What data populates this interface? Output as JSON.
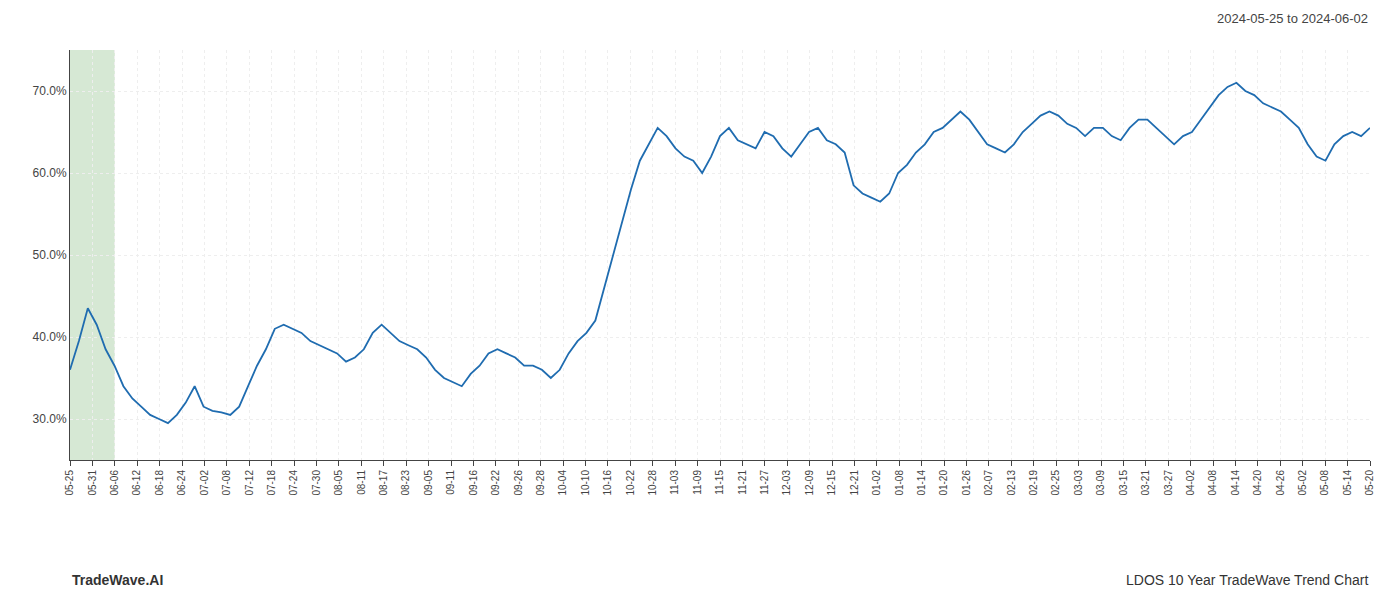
{
  "chart_data": {
    "type": "line",
    "annotations": [
      "2024-05-25 to 2024-06-02",
      "TradeWave.AI",
      "LDOS 10 Year TradeWave Trend Chart"
    ],
    "color": "#1f6cb0",
    "grid": true,
    "bands": [
      {
        "x0": 0,
        "x1": 2,
        "color": "#d6e8d4"
      }
    ],
    "xlim": [
      0,
      58
    ],
    "xticks": [
      {
        "value": 0,
        "label": "05-25"
      },
      {
        "value": 1,
        "label": "05-31"
      },
      {
        "value": 2,
        "label": "06-06"
      },
      {
        "value": 3,
        "label": "06-12"
      },
      {
        "value": 4,
        "label": "06-18"
      },
      {
        "value": 5,
        "label": "06-24"
      },
      {
        "value": 6,
        "label": "07-02"
      },
      {
        "value": 7,
        "label": "07-08"
      },
      {
        "value": 8,
        "label": "07-12"
      },
      {
        "value": 9,
        "label": "07-18"
      },
      {
        "value": 10,
        "label": "07-24"
      },
      {
        "value": 11,
        "label": "07-30"
      },
      {
        "value": 12,
        "label": "08-05"
      },
      {
        "value": 13,
        "label": "08-11"
      },
      {
        "value": 14,
        "label": "08-17"
      },
      {
        "value": 15,
        "label": "08-23"
      },
      {
        "value": 16,
        "label": "09-05"
      },
      {
        "value": 17,
        "label": "09-11"
      },
      {
        "value": 18,
        "label": "09-16"
      },
      {
        "value": 19,
        "label": "09-22"
      },
      {
        "value": 20,
        "label": "09-26"
      },
      {
        "value": 21,
        "label": "09-28"
      },
      {
        "value": 22,
        "label": "10-04"
      },
      {
        "value": 23,
        "label": "10-10"
      },
      {
        "value": 24,
        "label": "10-16"
      },
      {
        "value": 25,
        "label": "10-22"
      },
      {
        "value": 26,
        "label": "10-28"
      },
      {
        "value": 27,
        "label": "11-03"
      },
      {
        "value": 28,
        "label": "11-09"
      },
      {
        "value": 29,
        "label": "11-15"
      },
      {
        "value": 30,
        "label": "11-21"
      },
      {
        "value": 31,
        "label": "11-27"
      },
      {
        "value": 32,
        "label": "12-03"
      },
      {
        "value": 33,
        "label": "12-09"
      },
      {
        "value": 34,
        "label": "12-15"
      },
      {
        "value": 35,
        "label": "12-21"
      },
      {
        "value": 36,
        "label": "01-02"
      },
      {
        "value": 37,
        "label": "01-08"
      },
      {
        "value": 38,
        "label": "01-14"
      },
      {
        "value": 39,
        "label": "01-20"
      },
      {
        "value": 40,
        "label": "01-26"
      },
      {
        "value": 41,
        "label": "02-07"
      },
      {
        "value": 42,
        "label": "02-13"
      },
      {
        "value": 43,
        "label": "02-19"
      },
      {
        "value": 44,
        "label": "02-25"
      },
      {
        "value": 45,
        "label": "03-03"
      },
      {
        "value": 46,
        "label": "03-09"
      },
      {
        "value": 47,
        "label": "03-15"
      },
      {
        "value": 48,
        "label": "03-21"
      },
      {
        "value": 49,
        "label": "03-27"
      },
      {
        "value": 50,
        "label": "04-02"
      },
      {
        "value": 51,
        "label": "04-08"
      },
      {
        "value": 52,
        "label": "04-14"
      },
      {
        "value": 53,
        "label": "04-20"
      },
      {
        "value": 54,
        "label": "04-26"
      },
      {
        "value": 55,
        "label": "05-02"
      },
      {
        "value": 56,
        "label": "05-08"
      },
      {
        "value": 57,
        "label": "05-14"
      },
      {
        "value": 58,
        "label": "05-20"
      }
    ],
    "ylim": [
      25,
      75
    ],
    "yticks": [
      {
        "value": 30.0,
        "label": "30.0%"
      },
      {
        "value": 40.0,
        "label": "40.0%"
      },
      {
        "value": 50.0,
        "label": "50.0%"
      },
      {
        "value": 60.0,
        "label": "60.0%"
      },
      {
        "value": 70.0,
        "label": "70.0%"
      }
    ],
    "values": [
      36.0,
      39.5,
      43.5,
      41.5,
      38.5,
      36.5,
      34.0,
      32.5,
      31.5,
      30.5,
      30.0,
      29.5,
      30.5,
      32.0,
      34.0,
      31.5,
      31.0,
      30.8,
      30.5,
      31.5,
      34.0,
      36.5,
      38.5,
      41.0,
      41.5,
      41.0,
      40.5,
      39.5,
      39.0,
      38.5,
      38.0,
      37.0,
      37.5,
      38.5,
      40.5,
      41.5,
      40.5,
      39.5,
      39.0,
      38.5,
      37.5,
      36.0,
      35.0,
      34.5,
      34.0,
      35.5,
      36.5,
      38.0,
      38.5,
      38.0,
      37.5,
      36.5,
      36.5,
      36.0,
      35.0,
      36.0,
      38.0,
      39.5,
      40.5,
      42.0,
      46.0,
      50.0,
      54.0,
      58.0,
      61.5,
      63.5,
      65.5,
      64.5,
      63.0,
      62.0,
      61.5,
      60.0,
      62.0,
      64.5,
      65.5,
      64.0,
      63.5,
      63.0,
      65.0,
      64.5,
      63.0,
      62.0,
      63.5,
      65.0,
      65.5,
      64.0,
      63.5,
      62.5,
      58.5,
      57.5,
      57.0,
      56.5,
      57.5,
      60.0,
      61.0,
      62.5,
      63.5,
      65.0,
      65.5,
      66.5,
      67.5,
      66.5,
      65.0,
      63.5,
      63.0,
      62.5,
      63.5,
      65.0,
      66.0,
      67.0,
      67.5,
      67.0,
      66.0,
      65.5,
      64.5,
      65.5,
      65.5,
      64.5,
      64.0,
      65.5,
      66.5,
      66.5,
      65.5,
      64.5,
      63.5,
      64.5,
      65.0,
      66.5,
      68.0,
      69.5,
      70.5,
      71.0,
      70.0,
      69.5,
      68.5,
      68.0,
      67.5,
      66.5,
      65.5,
      63.5,
      62.0,
      61.5,
      63.5,
      64.5,
      65.0,
      64.5,
      65.5
    ]
  }
}
